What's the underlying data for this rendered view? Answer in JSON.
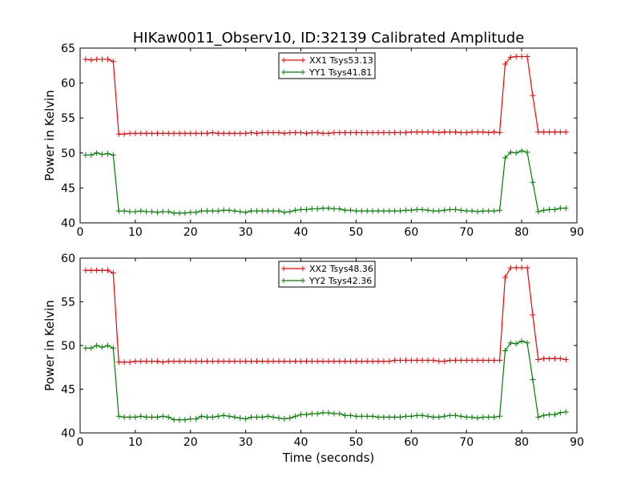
{
  "figure": {
    "title": "HIKaw0011_Observ10, ID:32139 Calibrated Amplitude",
    "xlabel": "Time (seconds)"
  },
  "chart_data": [
    {
      "type": "line",
      "title": "HIKaw0011_Observ10, ID:32139 Calibrated Amplitude",
      "xlabel": "",
      "ylabel": "Power in Kelvin",
      "xlim": [
        0,
        90
      ],
      "ylim": [
        40,
        65
      ],
      "xticks": [
        0,
        10,
        20,
        30,
        40,
        50,
        60,
        70,
        80,
        90
      ],
      "yticks": [
        40,
        45,
        50,
        55,
        60,
        65
      ],
      "grid": false,
      "legend_position": "top-center",
      "x": [
        1,
        2,
        3,
        4,
        5,
        6,
        7,
        8,
        9,
        10,
        11,
        12,
        13,
        14,
        15,
        16,
        17,
        18,
        19,
        20,
        21,
        22,
        23,
        24,
        25,
        26,
        27,
        28,
        29,
        30,
        31,
        32,
        33,
        34,
        35,
        36,
        37,
        38,
        39,
        40,
        41,
        42,
        43,
        44,
        45,
        46,
        47,
        48,
        49,
        50,
        51,
        52,
        53,
        54,
        55,
        56,
        57,
        58,
        59,
        60,
        61,
        62,
        63,
        64,
        65,
        66,
        67,
        68,
        69,
        70,
        71,
        72,
        73,
        74,
        75,
        76,
        77,
        78,
        79,
        80,
        81,
        82,
        83,
        84,
        85,
        86,
        87,
        88
      ],
      "series": [
        {
          "name": "XX1 Tsys53.13",
          "color": "#ff0000",
          "values": [
            63.4,
            63.3,
            63.4,
            63.4,
            63.4,
            63.1,
            52.7,
            52.7,
            52.8,
            52.8,
            52.8,
            52.8,
            52.8,
            52.8,
            52.8,
            52.8,
            52.8,
            52.8,
            52.8,
            52.8,
            52.8,
            52.8,
            52.8,
            52.9,
            52.8,
            52.8,
            52.8,
            52.8,
            52.8,
            52.8,
            52.9,
            52.8,
            52.9,
            52.9,
            52.9,
            52.9,
            52.8,
            52.9,
            52.9,
            52.9,
            52.8,
            52.9,
            52.9,
            52.8,
            52.8,
            52.9,
            52.9,
            52.9,
            52.9,
            52.9,
            52.9,
            52.9,
            52.9,
            52.9,
            52.9,
            52.9,
            52.9,
            52.9,
            52.9,
            53.0,
            53.0,
            53.0,
            53.0,
            53.0,
            52.9,
            53.0,
            53.0,
            53.0,
            52.9,
            52.9,
            53.0,
            53.0,
            53.0,
            52.9,
            53.0,
            52.9,
            62.7,
            63.7,
            63.8,
            63.8,
            63.8,
            58.2,
            53.0,
            53.0,
            53.0,
            53.0,
            53.0,
            53.0
          ]
        },
        {
          "name": "YY1 Tsys41.81",
          "color": "#008000",
          "values": [
            49.7,
            49.7,
            50.0,
            49.8,
            49.9,
            49.7,
            41.7,
            41.7,
            41.6,
            41.6,
            41.7,
            41.6,
            41.6,
            41.5,
            41.6,
            41.6,
            41.4,
            41.4,
            41.4,
            41.5,
            41.5,
            41.7,
            41.7,
            41.7,
            41.7,
            41.8,
            41.8,
            41.7,
            41.6,
            41.5,
            41.7,
            41.7,
            41.7,
            41.7,
            41.7,
            41.7,
            41.5,
            41.6,
            41.8,
            41.9,
            41.9,
            42.0,
            42.0,
            42.1,
            42.1,
            42.0,
            42.0,
            41.8,
            41.8,
            41.7,
            41.7,
            41.7,
            41.7,
            41.7,
            41.7,
            41.7,
            41.7,
            41.7,
            41.8,
            41.8,
            41.9,
            41.9,
            41.8,
            41.7,
            41.7,
            41.8,
            41.9,
            41.9,
            41.8,
            41.7,
            41.7,
            41.6,
            41.7,
            41.7,
            41.7,
            41.8,
            49.3,
            50.1,
            50.0,
            50.3,
            50.1,
            45.8,
            41.6,
            41.8,
            41.9,
            41.9,
            42.1,
            42.1
          ]
        }
      ]
    },
    {
      "type": "line",
      "title": "",
      "xlabel": "Time (seconds)",
      "ylabel": "Power in Kelvin",
      "xlim": [
        0,
        90
      ],
      "ylim": [
        40,
        60
      ],
      "xticks": [
        0,
        10,
        20,
        30,
        40,
        50,
        60,
        70,
        80,
        90
      ],
      "yticks": [
        40,
        45,
        50,
        55,
        60
      ],
      "grid": false,
      "legend_position": "top-center",
      "x": [
        1,
        2,
        3,
        4,
        5,
        6,
        7,
        8,
        9,
        10,
        11,
        12,
        13,
        14,
        15,
        16,
        17,
        18,
        19,
        20,
        21,
        22,
        23,
        24,
        25,
        26,
        27,
        28,
        29,
        30,
        31,
        32,
        33,
        34,
        35,
        36,
        37,
        38,
        39,
        40,
        41,
        42,
        43,
        44,
        45,
        46,
        47,
        48,
        49,
        50,
        51,
        52,
        53,
        54,
        55,
        56,
        57,
        58,
        59,
        60,
        61,
        62,
        63,
        64,
        65,
        66,
        67,
        68,
        69,
        70,
        71,
        72,
        73,
        74,
        75,
        76,
        77,
        78,
        79,
        80,
        81,
        82,
        83,
        84,
        85,
        86,
        87,
        88
      ],
      "series": [
        {
          "name": "XX2 Tsys48.36",
          "color": "#ff0000",
          "values": [
            58.6,
            58.6,
            58.6,
            58.6,
            58.6,
            58.3,
            48.1,
            48.1,
            48.1,
            48.2,
            48.2,
            48.2,
            48.2,
            48.2,
            48.1,
            48.2,
            48.2,
            48.2,
            48.2,
            48.2,
            48.2,
            48.2,
            48.2,
            48.2,
            48.2,
            48.2,
            48.2,
            48.2,
            48.2,
            48.2,
            48.2,
            48.2,
            48.2,
            48.2,
            48.2,
            48.2,
            48.2,
            48.2,
            48.2,
            48.2,
            48.2,
            48.2,
            48.2,
            48.2,
            48.2,
            48.2,
            48.2,
            48.2,
            48.2,
            48.2,
            48.2,
            48.2,
            48.2,
            48.2,
            48.2,
            48.2,
            48.3,
            48.3,
            48.3,
            48.3,
            48.3,
            48.3,
            48.3,
            48.3,
            48.2,
            48.2,
            48.3,
            48.3,
            48.3,
            48.3,
            48.3,
            48.3,
            48.3,
            48.3,
            48.3,
            48.3,
            57.8,
            58.9,
            58.9,
            58.9,
            58.9,
            53.5,
            48.4,
            48.5,
            48.5,
            48.5,
            48.5,
            48.4
          ]
        },
        {
          "name": "YY2 Tsys42.36",
          "color": "#008000",
          "values": [
            49.7,
            49.7,
            50.0,
            49.8,
            50.0,
            49.7,
            41.9,
            41.8,
            41.8,
            41.8,
            41.9,
            41.8,
            41.8,
            41.8,
            41.9,
            41.8,
            41.5,
            41.5,
            41.5,
            41.6,
            41.6,
            41.9,
            41.8,
            41.8,
            41.9,
            42.0,
            41.9,
            41.8,
            41.7,
            41.6,
            41.8,
            41.8,
            41.8,
            41.9,
            41.8,
            41.7,
            41.6,
            41.7,
            41.9,
            42.1,
            42.1,
            42.2,
            42.2,
            42.3,
            42.3,
            42.2,
            42.2,
            42.0,
            42.0,
            41.9,
            41.9,
            41.9,
            41.9,
            41.8,
            41.8,
            41.8,
            41.8,
            41.8,
            41.9,
            41.9,
            42.0,
            42.0,
            41.9,
            41.8,
            41.8,
            41.9,
            42.0,
            42.0,
            41.9,
            41.8,
            41.8,
            41.7,
            41.8,
            41.8,
            41.8,
            41.9,
            49.4,
            50.3,
            50.2,
            50.5,
            50.3,
            46.1,
            41.8,
            42.0,
            42.1,
            42.1,
            42.3,
            42.4
          ]
        }
      ]
    }
  ]
}
